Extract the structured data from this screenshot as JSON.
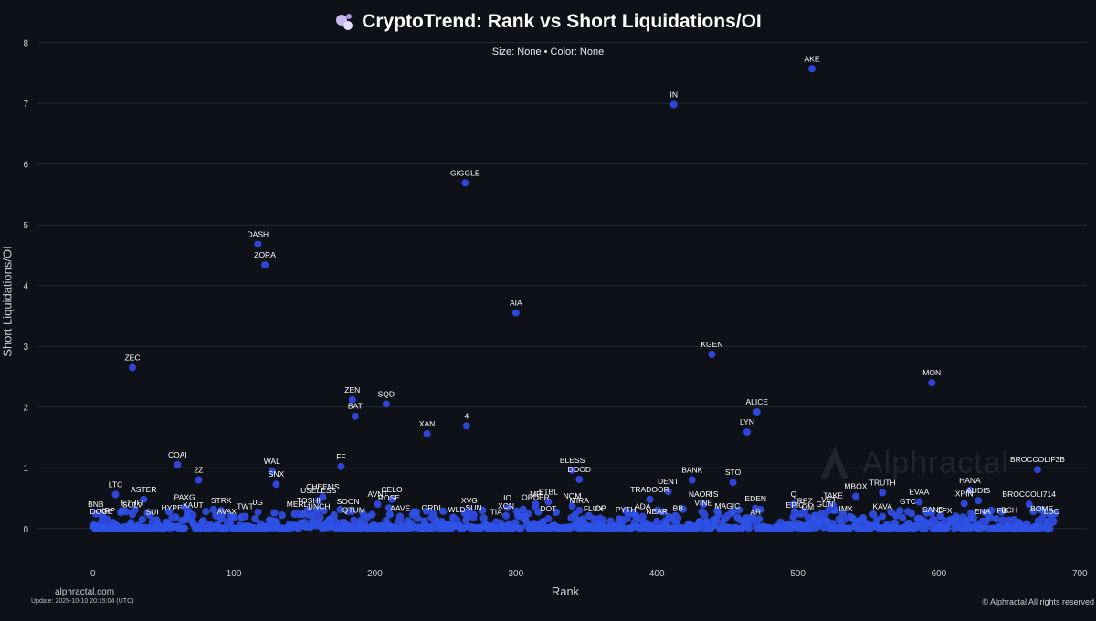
{
  "title": "CryptoTrend: Rank vs Short Liquidations/OI",
  "subtitle": "Size: None • Color: None",
  "footer": {
    "site": "alphractal.com",
    "update": "Update: 2025-10-10 20:15:04 (UTC)",
    "copyright": "© Alphractal All rights reserved"
  },
  "watermark": "Alphractal",
  "colors": {
    "background": "#0e1117",
    "point": "#2e45d8",
    "grid": "#262b36"
  },
  "chart_data": {
    "type": "scatter",
    "title": "CryptoTrend: Rank vs Short Liquidations/OI",
    "subtitle": "Size: None • Color: None",
    "xlabel": "Rank",
    "ylabel": "Short Liquidations/OI",
    "xlim": [
      -40,
      705
    ],
    "ylim": [
      -0.62,
      8.1
    ],
    "xticks": [
      0,
      100,
      200,
      300,
      400,
      500,
      600,
      700
    ],
    "yticks": [
      0,
      1,
      2,
      3,
      4,
      5,
      6,
      7,
      8
    ],
    "grid": true,
    "legend": "none",
    "labeled_points": [
      {
        "label": "AKE",
        "x": 510,
        "y": 7.57
      },
      {
        "label": "IN",
        "x": 412,
        "y": 6.98
      },
      {
        "label": "GIGGLE",
        "x": 264,
        "y": 5.69
      },
      {
        "label": "DASH",
        "x": 117,
        "y": 4.68
      },
      {
        "label": "ZORA",
        "x": 122,
        "y": 4.34
      },
      {
        "label": "AIA",
        "x": 300,
        "y": 3.55
      },
      {
        "label": "KGEN",
        "x": 439,
        "y": 2.87
      },
      {
        "label": "ZEC",
        "x": 28,
        "y": 2.65
      },
      {
        "label": "MON",
        "x": 595,
        "y": 2.4
      },
      {
        "label": "ZEN",
        "x": 184,
        "y": 2.12
      },
      {
        "label": "SQD",
        "x": 208,
        "y": 2.05
      },
      {
        "label": "ALICE",
        "x": 471,
        "y": 1.92
      },
      {
        "label": "BAT",
        "x": 186,
        "y": 1.85
      },
      {
        "label": "4",
        "x": 265,
        "y": 1.69
      },
      {
        "label": "LYN",
        "x": 464,
        "y": 1.59
      },
      {
        "label": "XAN",
        "x": 237,
        "y": 1.56
      },
      {
        "label": "COAI",
        "x": 60,
        "y": 1.05
      },
      {
        "label": "FF",
        "x": 176,
        "y": 1.02
      },
      {
        "label": "BROCCOLIF3B",
        "x": 670,
        "y": 0.97
      },
      {
        "label": "WAL",
        "x": 127,
        "y": 0.94
      },
      {
        "label": "BLESS",
        "x": 340,
        "y": 0.96
      },
      {
        "label": "BANK",
        "x": 425,
        "y": 0.8
      },
      {
        "label": "DOOD",
        "x": 345,
        "y": 0.81
      },
      {
        "label": "2Z",
        "x": 75,
        "y": 0.8
      },
      {
        "label": "STO",
        "x": 454,
        "y": 0.76
      },
      {
        "label": "SNX",
        "x": 130,
        "y": 0.73
      },
      {
        "label": "DENT",
        "x": 408,
        "y": 0.61
      },
      {
        "label": "HANA",
        "x": 622,
        "y": 0.63
      },
      {
        "label": "TRUTH",
        "x": 560,
        "y": 0.59
      },
      {
        "label": "LTC",
        "x": 16,
        "y": 0.56
      },
      {
        "label": "MBOX",
        "x": 541,
        "y": 0.53
      },
      {
        "label": "CHEEMS",
        "x": 163,
        "y": 0.52
      },
      {
        "label": "XPIN",
        "x": 618,
        "y": 0.41
      },
      {
        "label": "TRADOOR",
        "x": 395,
        "y": 0.48
      },
      {
        "label": "CELO",
        "x": 212,
        "y": 0.48
      },
      {
        "label": "AUDIS",
        "x": 628,
        "y": 0.46
      },
      {
        "label": "EVAA",
        "x": 586,
        "y": 0.44
      },
      {
        "label": "USELESS",
        "x": 160,
        "y": 0.46
      },
      {
        "label": "ASTER",
        "x": 36,
        "y": 0.48
      },
      {
        "label": "AVNT",
        "x": 202,
        "y": 0.4
      },
      {
        "label": "Q",
        "x": 497,
        "y": 0.4
      },
      {
        "label": "NAORIS",
        "x": 433,
        "y": 0.4
      },
      {
        "label": "STBL",
        "x": 323,
        "y": 0.44
      },
      {
        "label": "TAKE",
        "x": 525,
        "y": 0.38
      },
      {
        "label": "MP",
        "x": 314,
        "y": 0.4
      },
      {
        "label": "BROCCOLI714",
        "x": 664,
        "y": 0.4
      },
      {
        "label": "NOM",
        "x": 340,
        "y": 0.37
      },
      {
        "label": "EDEN",
        "x": 470,
        "y": 0.33
      },
      {
        "label": "ORDER",
        "x": 314,
        "y": 0.35
      },
      {
        "label": "PAXG",
        "x": 65,
        "y": 0.35
      },
      {
        "label": "ROSE",
        "x": 210,
        "y": 0.34
      },
      {
        "label": "IO",
        "x": 294,
        "y": 0.34
      },
      {
        "label": "VET",
        "x": 522,
        "y": 0.31
      },
      {
        "label": "MIRA",
        "x": 345,
        "y": 0.3
      },
      {
        "label": "REZ",
        "x": 505,
        "y": 0.29
      },
      {
        "label": "TOSHI",
        "x": 153,
        "y": 0.3
      },
      {
        "label": "STRK",
        "x": 91,
        "y": 0.3
      },
      {
        "label": "XVG",
        "x": 267,
        "y": 0.3
      },
      {
        "label": "SOON",
        "x": 181,
        "y": 0.28
      },
      {
        "label": "GTC",
        "x": 578,
        "y": 0.28
      },
      {
        "label": "VINE",
        "x": 433,
        "y": 0.26
      },
      {
        "label": "0G",
        "x": 117,
        "y": 0.27
      },
      {
        "label": "MERL",
        "x": 145,
        "y": 0.24
      },
      {
        "label": "BNB",
        "x": 2,
        "y": 0.24
      },
      {
        "label": "ETHFI",
        "x": 28,
        "y": 0.26
      },
      {
        "label": "SOLV",
        "x": 28,
        "y": 0.23
      },
      {
        "label": "XAUT",
        "x": 71,
        "y": 0.22
      },
      {
        "label": "EPIC",
        "x": 498,
        "y": 0.22
      },
      {
        "label": "MAGIC",
        "x": 450,
        "y": 0.21
      },
      {
        "label": "XCN",
        "x": 293,
        "y": 0.21
      },
      {
        "label": "1INCH",
        "x": 160,
        "y": 0.2
      },
      {
        "label": "ADA",
        "x": 390,
        "y": 0.2
      },
      {
        "label": "KAVA",
        "x": 560,
        "y": 0.2
      },
      {
        "label": "SUN",
        "x": 270,
        "y": 0.18
      },
      {
        "label": "ORDI",
        "x": 240,
        "y": 0.18
      },
      {
        "label": "BB",
        "x": 415,
        "y": 0.17
      },
      {
        "label": "FLUX",
        "x": 355,
        "y": 0.16
      },
      {
        "label": "DOT",
        "x": 323,
        "y": 0.16
      },
      {
        "label": "BCH",
        "x": 650,
        "y": 0.14
      },
      {
        "label": "XRP",
        "x": 10,
        "y": 0.13
      },
      {
        "label": "QTUM",
        "x": 185,
        "y": 0.14
      },
      {
        "label": "OP",
        "x": 360,
        "y": 0.17
      },
      {
        "label": "AAVE",
        "x": 218,
        "y": 0.17
      },
      {
        "label": "OM",
        "x": 507,
        "y": 0.19
      },
      {
        "label": "GUN",
        "x": 519,
        "y": 0.24
      },
      {
        "label": "FIL",
        "x": 645,
        "y": 0.13
      },
      {
        "label": "DOGE",
        "x": 6,
        "y": 0.12
      },
      {
        "label": "TWT",
        "x": 108,
        "y": 0.2
      },
      {
        "label": "HYPE",
        "x": 56,
        "y": 0.18
      },
      {
        "label": "PYTH",
        "x": 378,
        "y": 0.15
      },
      {
        "label": "WLD",
        "x": 258,
        "y": 0.15
      },
      {
        "label": "CFX",
        "x": 604,
        "y": 0.13
      },
      {
        "label": "SAND",
        "x": 596,
        "y": 0.15
      },
      {
        "label": "BOME",
        "x": 673,
        "y": 0.16
      },
      {
        "label": "ENA",
        "x": 631,
        "y": 0.12
      },
      {
        "label": "IMX",
        "x": 534,
        "y": 0.16
      },
      {
        "label": "SUI",
        "x": 42,
        "y": 0.11
      },
      {
        "label": "AR",
        "x": 470,
        "y": 0.11
      },
      {
        "label": "LDO",
        "x": 680,
        "y": 0.12
      },
      {
        "label": "AVAX",
        "x": 95,
        "y": 0.12
      },
      {
        "label": "TIA",
        "x": 286,
        "y": 0.11
      },
      {
        "label": "NEAR",
        "x": 400,
        "y": 0.12
      }
    ]
  }
}
